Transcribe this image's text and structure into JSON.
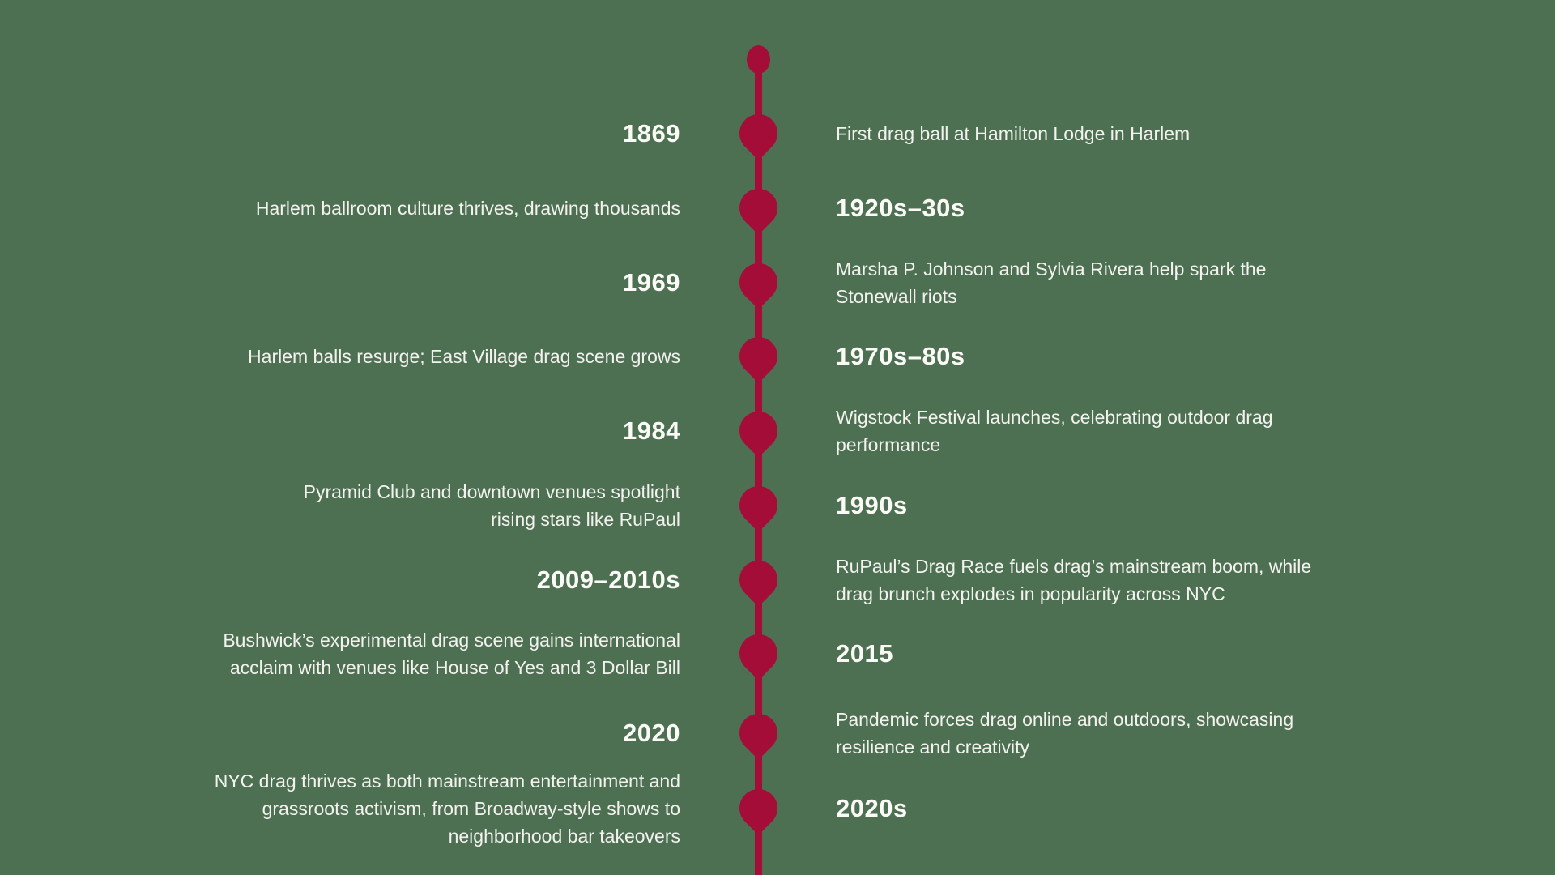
{
  "page": {
    "title": "NYC drag history timeline",
    "background_color": "#4d7053",
    "accent_color": "#a40d38",
    "text_color": "#f3f2ee"
  },
  "timeline": {
    "start_marker": "dot",
    "entries": [
      {
        "year": "1869",
        "year_side": "left",
        "description": "First drag ball at Hamilton Lodge in Harlem"
      },
      {
        "year": "1920s–30s",
        "year_side": "right",
        "description": "Harlem ballroom culture thrives, drawing thousands"
      },
      {
        "year": "1969",
        "year_side": "left",
        "description": "Marsha P. Johnson and Sylvia Rivera help spark the\nStonewall riots"
      },
      {
        "year": "1970s–80s",
        "year_side": "right",
        "description": "Harlem balls resurge; East Village drag scene grows"
      },
      {
        "year": "1984",
        "year_side": "left",
        "description": "Wigstock Festival launches, celebrating outdoor drag\nperformance"
      },
      {
        "year": "1990s",
        "year_side": "right",
        "description": "Pyramid Club and downtown venues spotlight\nrising stars like RuPaul"
      },
      {
        "year": "2009–2010s",
        "year_side": "left",
        "description": "RuPaul’s Drag Race fuels drag’s mainstream boom, while\ndrag brunch explodes in popularity across NYC"
      },
      {
        "year": "2015",
        "year_side": "right",
        "description": "Bushwick’s experimental drag scene gains international\nacclaim with venues like House of Yes and 3 Dollar Bill"
      },
      {
        "year": "2020",
        "year_side": "left",
        "description": "Pandemic forces drag online and outdoors, showcasing\nresilience and creativity"
      },
      {
        "year": "2020s",
        "year_side": "right",
        "description": "NYC drag thrives as both mainstream entertainment and\ngrassroots activism, from Broadway-style shows to\nneighborhood bar takeovers"
      }
    ]
  }
}
